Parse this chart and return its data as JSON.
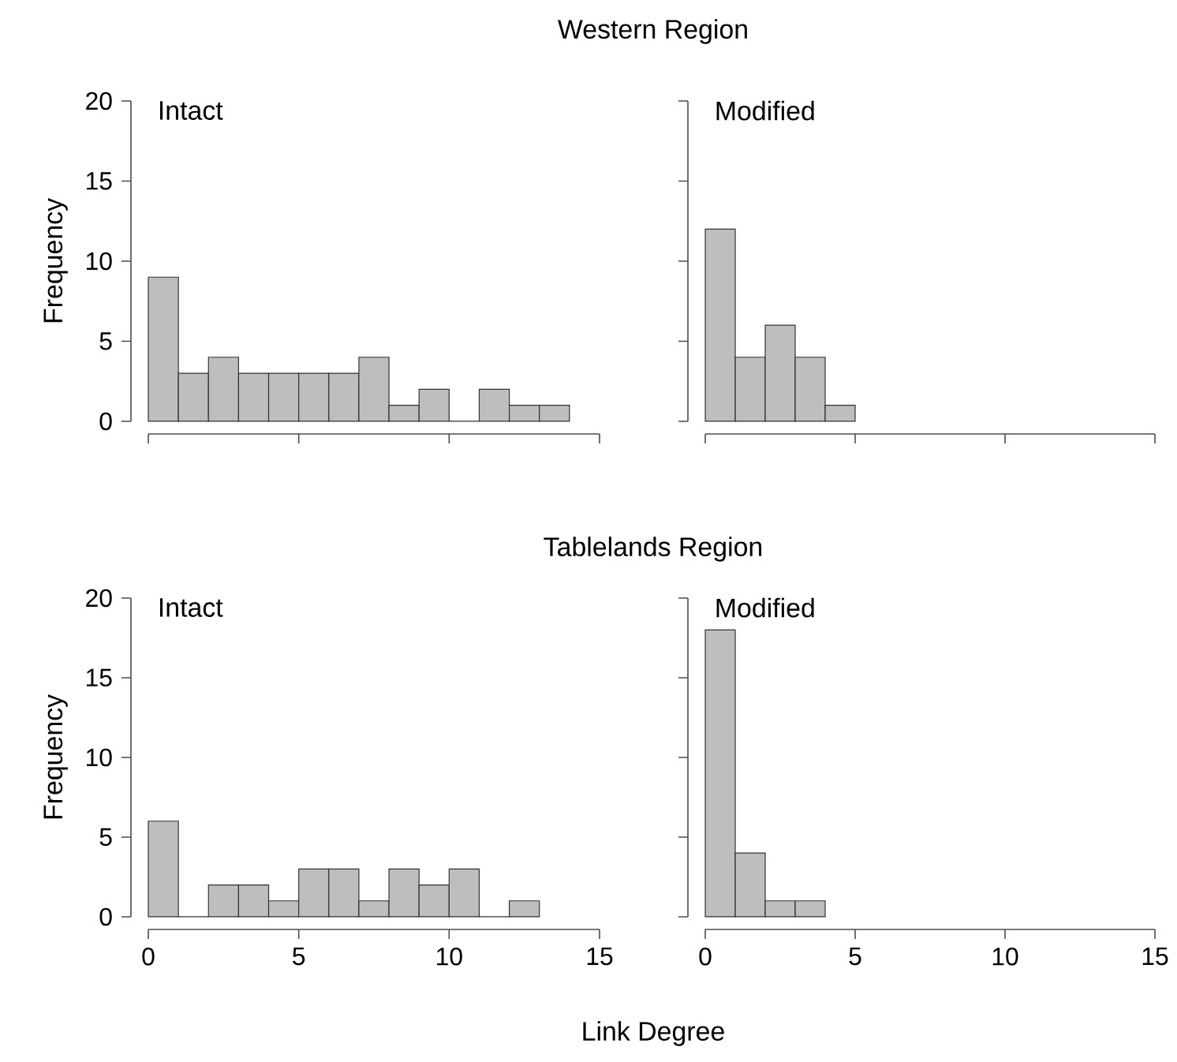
{
  "chart_data": [
    {
      "type": "histogram",
      "title": "Western Region",
      "ylabel": "Frequency",
      "annotations": [
        "Intact"
      ],
      "color": "#bebebe",
      "bins": [
        0,
        1,
        2,
        3,
        4,
        5,
        6,
        7,
        8,
        9,
        10,
        11,
        12,
        13,
        14
      ],
      "values": [
        9,
        3,
        4,
        3,
        3,
        3,
        3,
        4,
        1,
        2,
        0,
        2,
        1,
        1
      ],
      "xlim": [
        0,
        15
      ],
      "ylim": [
        0,
        20
      ],
      "xticks": [
        0,
        5,
        10,
        15
      ],
      "yticks": [
        0,
        5,
        10,
        15,
        20
      ],
      "tick_labels": "y"
    },
    {
      "type": "histogram",
      "annotations": [
        "Modified"
      ],
      "color": "#bebebe",
      "bins": [
        0,
        1,
        2,
        3,
        4,
        5
      ],
      "values": [
        12,
        4,
        6,
        4,
        1
      ],
      "xlim": [
        0,
        15
      ],
      "ylim": [
        0,
        20
      ],
      "xticks": [
        0,
        5,
        10,
        15
      ],
      "yticks": [
        0,
        5,
        10,
        15,
        20
      ],
      "tick_labels": false
    },
    {
      "type": "histogram",
      "title": "Tablelands Region",
      "ylabel": "Frequency",
      "xlabel": "Link Degree",
      "annotations": [
        "Intact"
      ],
      "color": "#bebebe",
      "bins": [
        0,
        1,
        2,
        3,
        4,
        5,
        6,
        7,
        8,
        9,
        10,
        11,
        12,
        13
      ],
      "values": [
        6,
        0,
        2,
        2,
        1,
        3,
        3,
        1,
        3,
        2,
        3,
        0,
        1
      ],
      "xlim": [
        0,
        15
      ],
      "ylim": [
        0,
        20
      ],
      "xticks": [
        0,
        5,
        10,
        15
      ],
      "yticks": [
        0,
        5,
        10,
        15,
        20
      ]
    },
    {
      "type": "histogram",
      "annotations": [
        "Modified"
      ],
      "color": "#bebebe",
      "bins": [
        0,
        1,
        2,
        3,
        4
      ],
      "values": [
        18,
        4,
        1,
        1
      ],
      "xlim": [
        0,
        15
      ],
      "ylim": [
        0,
        20
      ],
      "xticks": [
        0,
        5,
        10,
        15
      ],
      "yticks": [
        0,
        5,
        10,
        15,
        20
      ],
      "tick_labels": "x"
    }
  ]
}
